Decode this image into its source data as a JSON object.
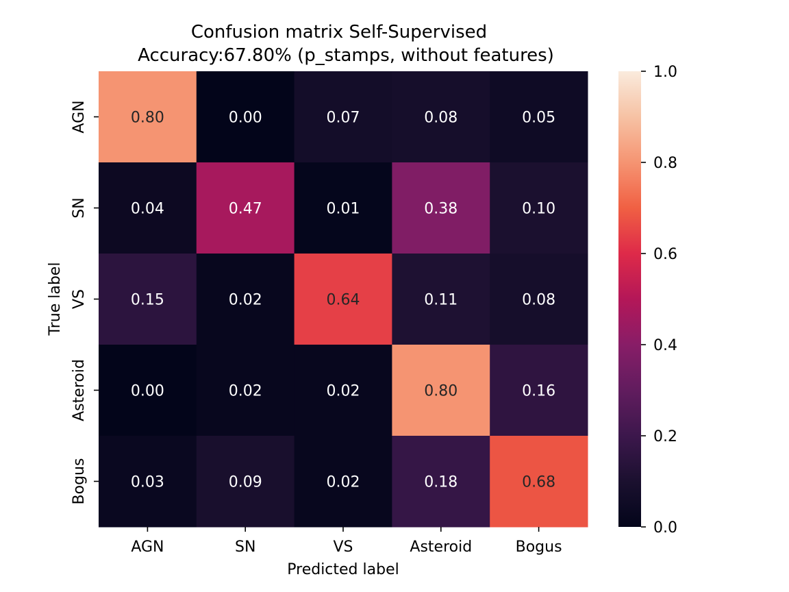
{
  "chart_data": {
    "type": "heatmap",
    "title_line1": "Confusion matrix Self-Supervised",
    "title_line2": "Accuracy:67.80% (p_stamps, without features)",
    "xlabel": "Predicted label",
    "ylabel": "True label",
    "x_categories": [
      "AGN",
      "SN",
      "VS",
      "Asteroid",
      "Bogus"
    ],
    "y_categories": [
      "AGN",
      "SN",
      "VS",
      "Asteroid",
      "Bogus"
    ],
    "values": [
      [
        0.8,
        0.0,
        0.07,
        0.08,
        0.05
      ],
      [
        0.04,
        0.47,
        0.01,
        0.38,
        0.1
      ],
      [
        0.15,
        0.02,
        0.64,
        0.11,
        0.08
      ],
      [
        0.0,
        0.02,
        0.02,
        0.8,
        0.16
      ],
      [
        0.03,
        0.09,
        0.02,
        0.18,
        0.68
      ]
    ],
    "value_format": "0.00",
    "colormap": "rocket",
    "vmin": 0.0,
    "vmax": 1.0,
    "colorbar_ticks": [
      "0.0",
      "0.2",
      "0.4",
      "0.6",
      "0.8",
      "1.0"
    ]
  }
}
